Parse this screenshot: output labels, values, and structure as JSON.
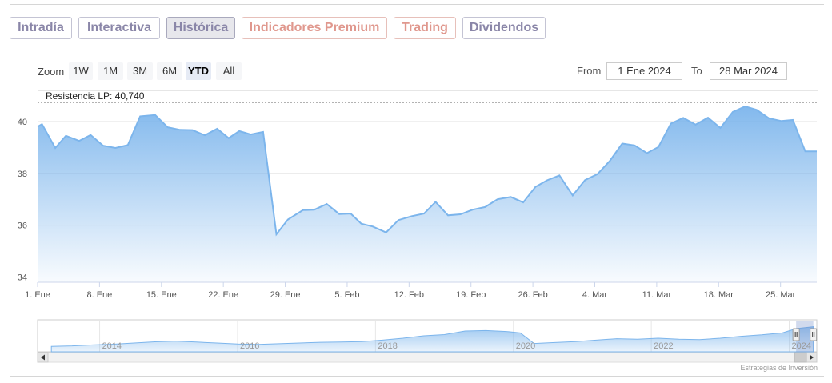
{
  "tabs": [
    {
      "label": "Intradía",
      "style": "gray"
    },
    {
      "label": "Interactiva",
      "style": "gray"
    },
    {
      "label": "Histórica",
      "style": "active"
    },
    {
      "label": "Indicadores Premium",
      "style": "red"
    },
    {
      "label": "Trading",
      "style": "red"
    },
    {
      "label": "Dividendos",
      "style": "gray"
    }
  ],
  "zoom": {
    "label": "Zoom",
    "buttons": [
      "1W",
      "1M",
      "3M",
      "6M",
      "YTD",
      "All"
    ],
    "selected": "YTD"
  },
  "range": {
    "from_label": "From",
    "from_value": "1 Ene 2024",
    "to_label": "To",
    "to_value": "28 Mar 2024"
  },
  "colors": {
    "line": "#7cb5ec",
    "area_top": "#7cb5ec",
    "active_tab_bg": "#e7e7ec",
    "resistance": "#333333"
  },
  "chart_data": {
    "type": "area",
    "title": "",
    "xlabel": "",
    "ylabel": "",
    "ylim": [
      33.8,
      41.2
    ],
    "y_ticks": [
      34,
      36,
      38,
      40
    ],
    "x_ticks": [
      {
        "label": "1. Ene",
        "day": 0
      },
      {
        "label": "8. Ene",
        "day": 7
      },
      {
        "label": "15. Ene",
        "day": 14
      },
      {
        "label": "22. Ene",
        "day": 21
      },
      {
        "label": "29. Ene",
        "day": 28
      },
      {
        "label": "5. Feb",
        "day": 35
      },
      {
        "label": "12. Feb",
        "day": 42
      },
      {
        "label": "19. Feb",
        "day": 49
      },
      {
        "label": "26. Feb",
        "day": 56
      },
      {
        "label": "4. Mar",
        "day": 63
      },
      {
        "label": "11. Mar",
        "day": 70
      },
      {
        "label": "18. Mar",
        "day": 77
      },
      {
        "label": "25. Mar",
        "day": 84
      }
    ],
    "plot_lines": [
      {
        "label": "Resistencia LP: 40,740",
        "value": 40.74,
        "style": "dashed"
      }
    ],
    "series": [
      {
        "x": [
          0,
          0.5,
          2,
          3.2,
          4.7,
          6,
          7.4,
          8.8,
          10.2,
          11.6,
          13.3,
          14.7,
          16.1,
          17.5,
          18.9,
          20.3,
          21.6,
          22.8,
          24.1,
          25.5,
          27,
          28.3,
          30,
          31.3,
          32.7,
          34.1,
          35.4,
          36.6,
          37.9,
          39.4,
          40.8,
          42.3,
          43.7,
          45,
          46.4,
          47.8,
          49.2,
          50.6,
          52,
          53.5,
          54.9,
          56.3,
          57.6,
          59,
          60.5,
          61.9,
          63.3,
          64.7,
          66.1,
          67.5,
          68.9,
          70.2,
          71.6,
          73,
          74.4,
          75.8,
          77.2,
          78.6,
          80,
          81.3,
          82.7,
          84.1,
          85.4,
          86.8,
          88.1
        ],
        "y": [
          39.8,
          39.9,
          38.98,
          39.45,
          39.25,
          39.48,
          39.07,
          38.98,
          39.09,
          40.2,
          40.25,
          39.78,
          39.68,
          39.67,
          39.47,
          39.72,
          39.36,
          39.63,
          39.5,
          39.6,
          35.65,
          36.22,
          36.58,
          36.6,
          36.82,
          36.43,
          36.45,
          36.06,
          35.95,
          35.72,
          36.2,
          36.35,
          36.45,
          36.9,
          36.38,
          36.42,
          36.6,
          36.7,
          37.0,
          37.09,
          36.88,
          37.48,
          37.73,
          37.92,
          37.15,
          37.74,
          37.97,
          38.48,
          39.15,
          39.08,
          38.78,
          39.02,
          39.92,
          40.14,
          39.88,
          40.15,
          39.75,
          40.37,
          40.58,
          40.45,
          40.12,
          40.02,
          40.06,
          38.85,
          38.85
        ]
      }
    ]
  },
  "navigator": {
    "year_labels": [
      "2014",
      "2016",
      "2018",
      "2020",
      "2022",
      "2024"
    ],
    "x": [
      2013.2,
      2013.5,
      2013.8,
      2014.1,
      2014.4,
      2014.7,
      2015.0,
      2015.3,
      2015.6,
      2015.9,
      2016.2,
      2016.5,
      2016.8,
      2017.1,
      2017.4,
      2017.7,
      2018.0,
      2018.3,
      2018.6,
      2018.9,
      2019.2,
      2019.5,
      2019.8,
      2020.0,
      2020.2,
      2020.5,
      2020.8,
      2021.1,
      2021.4,
      2021.7,
      2022.0,
      2022.3,
      2022.6,
      2022.9,
      2023.2,
      2023.5,
      2023.8,
      2024.0,
      2024.25
    ],
    "y": [
      0.16,
      0.18,
      0.22,
      0.25,
      0.3,
      0.35,
      0.38,
      0.34,
      0.3,
      0.26,
      0.24,
      0.27,
      0.3,
      0.33,
      0.34,
      0.36,
      0.42,
      0.5,
      0.6,
      0.65,
      0.8,
      0.82,
      0.78,
      0.72,
      0.28,
      0.32,
      0.36,
      0.42,
      0.48,
      0.46,
      0.5,
      0.46,
      0.44,
      0.5,
      0.58,
      0.64,
      0.72,
      0.9,
      0.98
    ],
    "window": [
      2024.0,
      2024.25
    ],
    "x_range": [
      2013.0,
      2024.3
    ]
  },
  "credits": "Estrategias de Inversión"
}
